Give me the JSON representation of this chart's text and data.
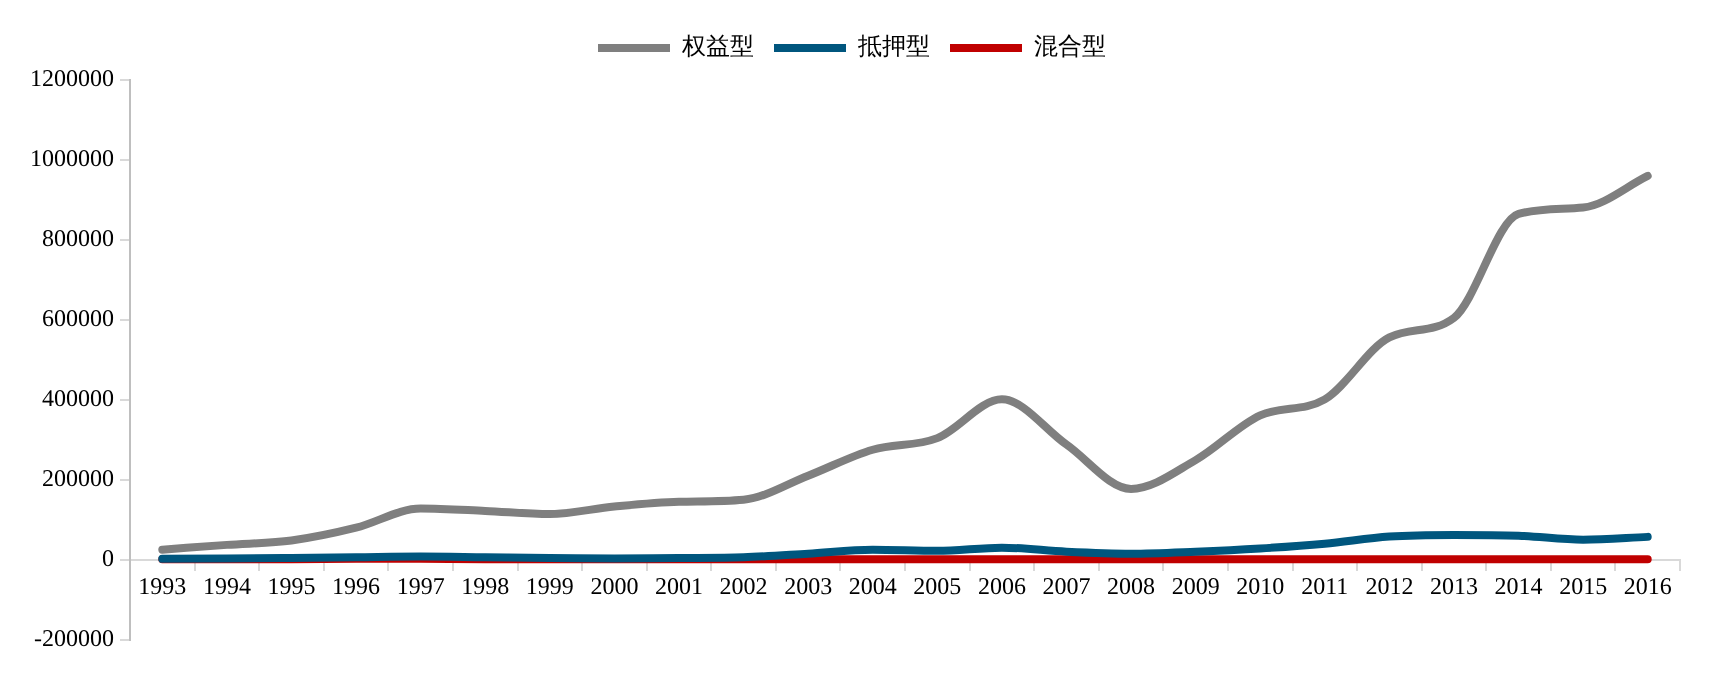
{
  "chart_data": {
    "type": "line",
    "categories": [
      "1993",
      "1994",
      "1995",
      "1996",
      "1997",
      "1998",
      "1999",
      "2000",
      "2001",
      "2002",
      "2003",
      "2004",
      "2005",
      "2006",
      "2007",
      "2008",
      "2009",
      "2010",
      "2011",
      "2012",
      "2013",
      "2014",
      "2015",
      "2016"
    ],
    "series": [
      {
        "name": "权益型",
        "color": "#7f7f7f",
        "values": [
          25000,
          37000,
          48000,
          80000,
          128000,
          122000,
          114000,
          133000,
          145000,
          150000,
          210000,
          275000,
          304000,
          401000,
          288000,
          177000,
          249000,
          361000,
          401000,
          556000,
          605000,
          865000,
          881000,
          960000
        ]
      },
      {
        "name": "抵押型",
        "color": "#00567e",
        "values": [
          2000,
          3000,
          4000,
          6000,
          8000,
          6000,
          4000,
          3000,
          4000,
          6000,
          15000,
          25000,
          22000,
          30000,
          20000,
          15000,
          20000,
          28000,
          40000,
          58000,
          62000,
          60000,
          50000,
          57000
        ]
      },
      {
        "name": "混合型",
        "color": "#c00000",
        "values": [
          1000,
          1000,
          1000,
          2000,
          2000,
          1000,
          1000,
          1000,
          1000,
          1000,
          1000,
          1000,
          1000,
          1000,
          1000,
          1000,
          1000,
          1000,
          1000,
          1000,
          1000,
          1000,
          1000,
          1000
        ]
      }
    ],
    "ylim": [
      -200000,
      1200000
    ],
    "yticks": [
      -200000,
      0,
      200000,
      400000,
      600000,
      800000,
      1000000,
      1200000
    ],
    "grid": false,
    "legend": "top",
    "marker": "none",
    "line_style": "solid"
  }
}
